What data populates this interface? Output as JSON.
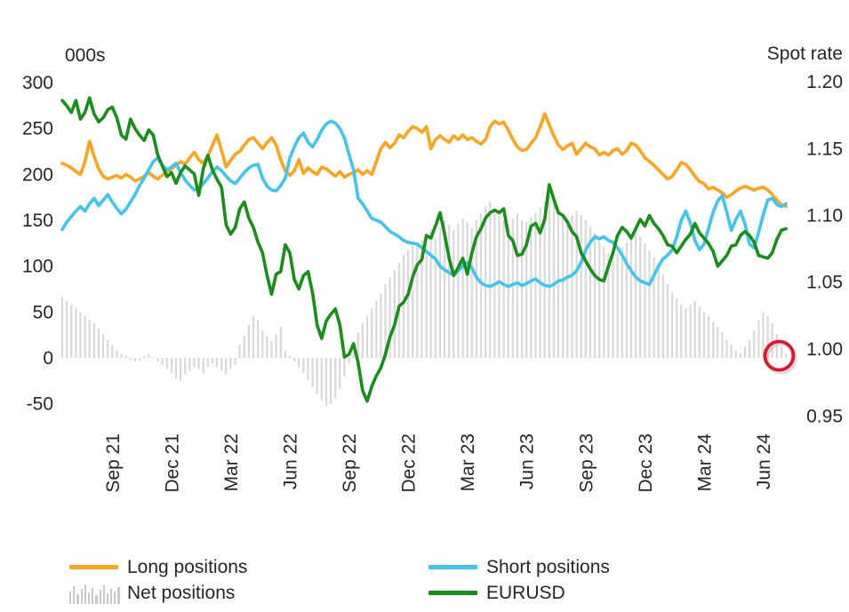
{
  "left_axis": {
    "title": "000s",
    "ticks": [
      300,
      250,
      200,
      150,
      100,
      50,
      0,
      -50
    ]
  },
  "right_axis": {
    "title": "Spot rate",
    "ticks": [
      "1.20",
      "1.15",
      "1.10",
      "1.05",
      "1.00",
      "0.95"
    ]
  },
  "x_axis": {
    "ticks": [
      {
        "label": "Sep 21",
        "index": 11
      },
      {
        "label": "Dec 21",
        "index": 24
      },
      {
        "label": "Mar 22",
        "index": 37
      },
      {
        "label": "Jun 22",
        "index": 50
      },
      {
        "label": "Sep 22",
        "index": 63
      },
      {
        "label": "Dec 22",
        "index": 76
      },
      {
        "label": "Mar 23",
        "index": 89
      },
      {
        "label": "Jun 23",
        "index": 102
      },
      {
        "label": "Sep 23",
        "index": 115
      },
      {
        "label": "Dec 23",
        "index": 128
      },
      {
        "label": "Mar 24",
        "index": 141
      },
      {
        "label": "Jun 24",
        "index": 154
      }
    ]
  },
  "legend": {
    "items": [
      {
        "label": "Long positions",
        "color": "#FFA319",
        "type": "line"
      },
      {
        "label": "Net positions",
        "color": "#D9D9D9",
        "type": "bars"
      },
      {
        "label": "Short positions",
        "color": "#3EC6F0",
        "type": "line"
      },
      {
        "label": "EURUSD",
        "color": "#169016",
        "type": "line"
      }
    ]
  },
  "annotation": {
    "shape": "circle",
    "color": "#E8112D",
    "x_index": 157.5,
    "right_axis_value": 0.995
  },
  "chart_data": {
    "type": "combo",
    "frequency": "weekly",
    "left_axis_range": [
      -50,
      300
    ],
    "right_axis_range": [
      0.95,
      1.2
    ],
    "grid": false,
    "legend_position": "bottom",
    "series": [
      {
        "name": "Long positions",
        "type": "line",
        "axis": "left",
        "color": "#FFA319",
        "values": [
          212,
          210,
          207,
          203,
          200,
          214,
          236,
          220,
          206,
          198,
          195,
          197,
          199,
          196,
          200,
          197,
          193,
          195,
          198,
          202,
          198,
          195,
          199,
          203,
          206,
          210,
          214,
          211,
          218,
          224,
          216,
          212,
          220,
          232,
          243,
          226,
          208,
          215,
          222,
          225,
          232,
          238,
          240,
          234,
          228,
          235,
          240,
          232,
          216,
          204,
          199,
          204,
          216,
          201,
          207,
          203,
          200,
          208,
          206,
          202,
          198,
          203,
          197,
          200,
          202,
          205,
          200,
          204,
          200,
          214,
          228,
          235,
          229,
          234,
          243,
          240,
          247,
          252,
          250,
          246,
          252,
          228,
          238,
          242,
          238,
          235,
          242,
          238,
          243,
          238,
          240,
          236,
          233,
          238,
          252,
          258,
          255,
          257,
          248,
          238,
          230,
          226,
          227,
          234,
          240,
          252,
          266,
          254,
          242,
          232,
          227,
          231,
          234,
          222,
          228,
          234,
          230,
          228,
          221,
          224,
          221,
          226,
          228,
          222,
          226,
          234,
          232,
          226,
          218,
          214,
          210,
          205,
          200,
          195,
          198,
          205,
          213,
          211,
          205,
          198,
          192,
          190,
          184,
          186,
          183,
          180,
          175,
          178,
          182,
          185,
          187,
          185,
          183,
          185,
          186,
          183,
          178,
          172,
          167,
          165
        ]
      },
      {
        "name": "Short positions",
        "type": "line",
        "axis": "left",
        "color": "#3EC6F0",
        "values": [
          140,
          148,
          154,
          160,
          165,
          160,
          168,
          174,
          166,
          172,
          178,
          170,
          163,
          157,
          162,
          170,
          178,
          188,
          196,
          205,
          214,
          218,
          210,
          205,
          208,
          212,
          202,
          194,
          188,
          183,
          185,
          190,
          196,
          203,
          208,
          204,
          198,
          193,
          190,
          196,
          202,
          207,
          210,
          211,
          196,
          187,
          183,
          182,
          188,
          196,
          218,
          230,
          240,
          245,
          235,
          230,
          238,
          248,
          255,
          258,
          256,
          250,
          240,
          222,
          205,
          174,
          168,
          160,
          152,
          150,
          148,
          143,
          138,
          135,
          132,
          128,
          126,
          125,
          124,
          120,
          116,
          112,
          108,
          100,
          96,
          93,
          90,
          95,
          100,
          104,
          98,
          88,
          82,
          79,
          78,
          80,
          83,
          80,
          78,
          80,
          82,
          79,
          81,
          84,
          86,
          82,
          79,
          78,
          80,
          84,
          85,
          88,
          90,
          95,
          104,
          118,
          126,
          132,
          130,
          132,
          128,
          126,
          120,
          112,
          103,
          95,
          88,
          84,
          82,
          80,
          90,
          100,
          108,
          112,
          118,
          132,
          150,
          160,
          147,
          128,
          118,
          124,
          141,
          159,
          171,
          177,
          159,
          139,
          151,
          160,
          146,
          124,
          120,
          137,
          156,
          172,
          174,
          167,
          165,
          168
        ]
      },
      {
        "name": "Net positions",
        "type": "bar",
        "axis": "left",
        "color": "#D9D9D9",
        "values": [
          66,
          62,
          58,
          54,
          50,
          46,
          42,
          38,
          32,
          26,
          20,
          14,
          8,
          4,
          2,
          -2,
          -4,
          -3,
          2,
          4,
          1,
          -4,
          -8,
          -12,
          -16,
          -22,
          -25,
          -18,
          -14,
          -10,
          -12,
          -16,
          -10,
          -6,
          -10,
          -14,
          -18,
          -12,
          -8,
          14,
          24,
          36,
          46,
          42,
          30,
          24,
          18,
          26,
          34,
          8,
          2,
          -4,
          -10,
          -16,
          -24,
          -32,
          -40,
          -46,
          -52,
          -50,
          -44,
          -34,
          -20,
          -6,
          8,
          28,
          38,
          46,
          54,
          62,
          70,
          80,
          88,
          96,
          104,
          112,
          118,
          122,
          124,
          128,
          134,
          140,
          130,
          142,
          150,
          145,
          140,
          146,
          152,
          148,
          142,
          150,
          158,
          165,
          170,
          162,
          155,
          150,
          146,
          152,
          158,
          150,
          148,
          154,
          158,
          164,
          170,
          177,
          170,
          162,
          156,
          152,
          156,
          160,
          156,
          150,
          143,
          136,
          128,
          121,
          114,
          110,
          114,
          120,
          126,
          132,
          137,
          132,
          125,
          117,
          110,
          100,
          90,
          80,
          72,
          65,
          58,
          54,
          58,
          62,
          56,
          50,
          46,
          40,
          34,
          28,
          20,
          14,
          8,
          5,
          12,
          20,
          30,
          42,
          50,
          46,
          38,
          26,
          12,
          4
        ]
      },
      {
        "name": "EURUSD",
        "type": "line",
        "axis": "right",
        "color": "#169016",
        "values": [
          1.186,
          1.182,
          1.177,
          1.186,
          1.172,
          1.177,
          1.188,
          1.176,
          1.17,
          1.173,
          1.179,
          1.181,
          1.173,
          1.16,
          1.157,
          1.172,
          1.165,
          1.16,
          1.156,
          1.164,
          1.16,
          1.145,
          1.137,
          1.129,
          1.132,
          1.124,
          1.132,
          1.137,
          1.134,
          1.131,
          1.115,
          1.135,
          1.145,
          1.134,
          1.127,
          1.121,
          1.093,
          1.086,
          1.091,
          1.105,
          1.11,
          1.098,
          1.091,
          1.08,
          1.072,
          1.055,
          1.041,
          1.056,
          1.058,
          1.078,
          1.072,
          1.052,
          1.045,
          1.055,
          1.058,
          1.042,
          1.018,
          1.008,
          1.021,
          1.026,
          1.03,
          1.018,
          0.994,
          0.996,
          1.004,
          0.99,
          0.969,
          0.961,
          0.972,
          0.98,
          0.986,
          0.996,
          1.009,
          1.018,
          1.032,
          1.035,
          1.041,
          1.054,
          1.063,
          1.067,
          1.085,
          1.083,
          1.092,
          1.102,
          1.086,
          1.068,
          1.055,
          1.061,
          1.068,
          1.056,
          1.072,
          1.084,
          1.09,
          1.098,
          1.102,
          1.104,
          1.102,
          1.105,
          1.085,
          1.081,
          1.07,
          1.071,
          1.078,
          1.092,
          1.094,
          1.087,
          1.097,
          1.123,
          1.112,
          1.102,
          1.1,
          1.095,
          1.088,
          1.084,
          1.072,
          1.066,
          1.06,
          1.055,
          1.052,
          1.051,
          1.062,
          1.072,
          1.085,
          1.091,
          1.088,
          1.083,
          1.09,
          1.097,
          1.092,
          1.1,
          1.094,
          1.09,
          1.085,
          1.078,
          1.077,
          1.072,
          1.077,
          1.082,
          1.086,
          1.094,
          1.087,
          1.083,
          1.079,
          1.073,
          1.062,
          1.066,
          1.07,
          1.077,
          1.078,
          1.085,
          1.088,
          1.085,
          1.08,
          1.07,
          1.069,
          1.068,
          1.072,
          1.082,
          1.089,
          1.09
        ]
      }
    ]
  }
}
